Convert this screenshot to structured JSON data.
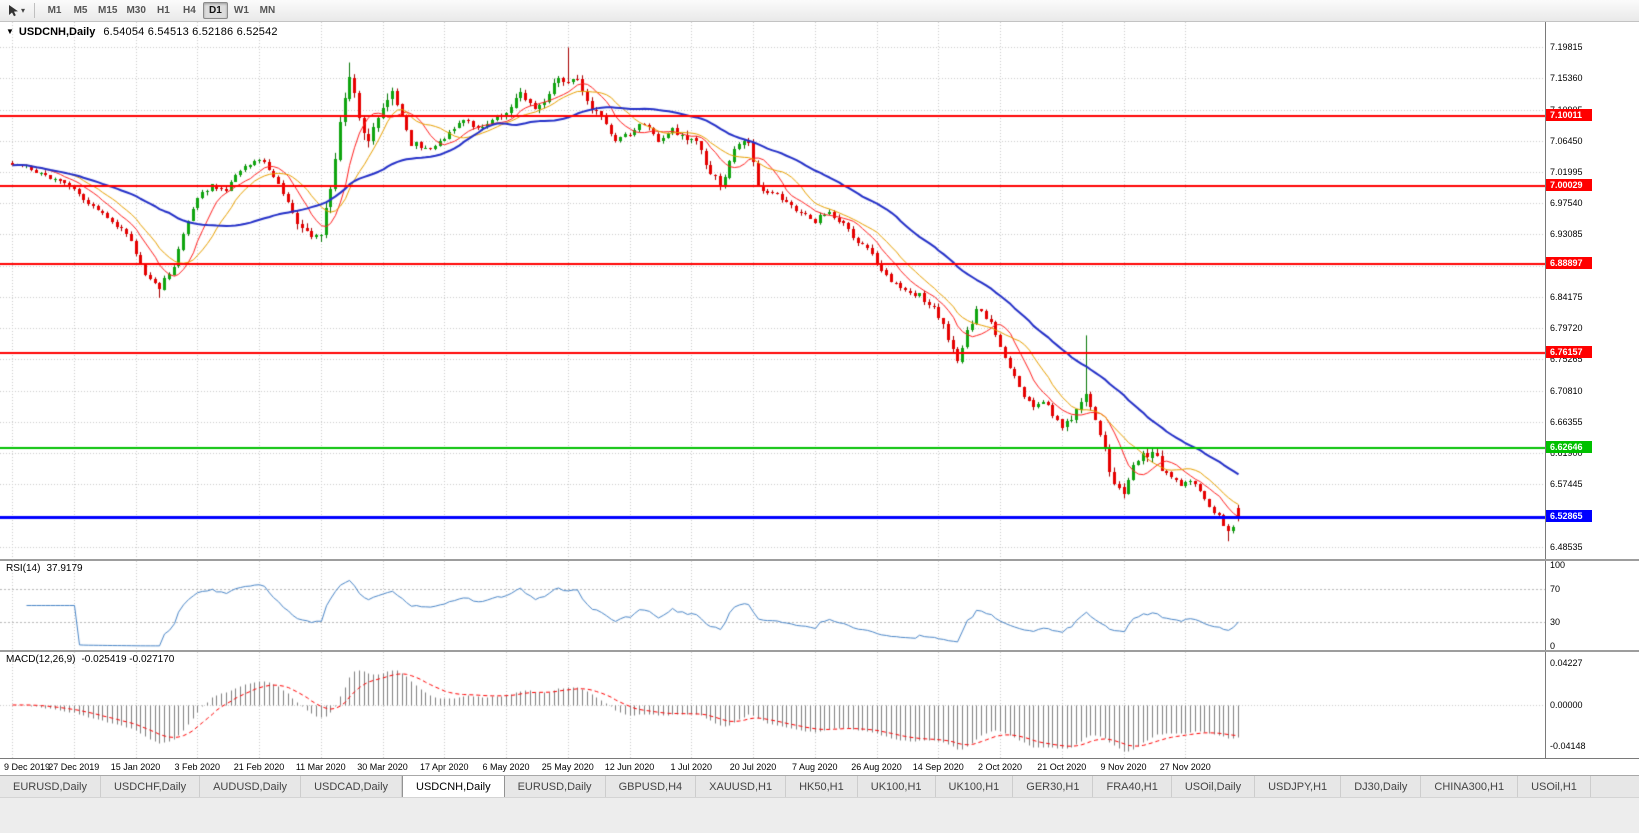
{
  "toolbar": {
    "timeframes": [
      "M1",
      "M5",
      "M15",
      "M30",
      "H1",
      "H4",
      "D1",
      "W1",
      "MN"
    ],
    "active_timeframe": "D1",
    "caret_icon": "▾"
  },
  "chart": {
    "title_icon": "▼",
    "symbol_title": "USDCNH,Daily",
    "ohlc_text": "6.54054 6.54513 6.52186 6.52542"
  },
  "chart_data": {
    "type": "candlestick",
    "title": "USDCNH,Daily",
    "symbol": "USDCNH",
    "timeframe": "Daily",
    "open": 6.54054,
    "high": 6.54513,
    "low": 6.52186,
    "close": 6.52542,
    "bars_total": 259,
    "bars_per_label": 13,
    "x_labels": [
      "9 Dec 2019",
      "27 Dec 2019",
      "15 Jan 2020",
      "3 Feb 2020",
      "21 Feb 2020",
      "11 Mar 2020",
      "30 Mar 2020",
      "17 Apr 2020",
      "6 May 2020",
      "25 May 2020",
      "12 Jun 2020",
      "1 Jul 2020",
      "20 Jul 2020",
      "7 Aug 2020",
      "26 Aug 2020",
      "14 Sep 2020",
      "2 Oct 2020",
      "21 Oct 2020",
      "9 Nov 2020",
      "27 Nov 2020"
    ],
    "y_ticks": [
      "7.19815",
      "7.15360",
      "7.10905",
      "7.06450",
      "7.01995",
      "6.97540",
      "6.93085",
      "6.88630",
      "6.84175",
      "6.79720",
      "6.75265",
      "6.70810",
      "6.66355",
      "6.61900",
      "6.57445",
      "6.52990",
      "6.48535"
    ],
    "price_top": 7.2338,
    "price_bottom": 6.4682,
    "grid_color": "#CBCBCB",
    "up_color": "#0FA50F",
    "up_edge": "#067806",
    "down_color": "#E60000",
    "down_edge": "#A80000",
    "ma": [
      {
        "period": 8,
        "color": "#FF2020",
        "width": 1
      },
      {
        "period": 13,
        "color": "#E8A000",
        "width": 1
      },
      {
        "period": 34,
        "color": "#2430C8",
        "width": 2
      }
    ],
    "horizontal_lines": [
      {
        "price": 7.10011,
        "label": "7.10011",
        "color": "#FF0000",
        "width": 2
      },
      {
        "price": 7.00029,
        "label": "7.00029",
        "color": "#FF0000",
        "width": 2
      },
      {
        "price": 6.88897,
        "label": "6.88897",
        "color": "#FF0000",
        "width": 2
      },
      {
        "price": 6.76157,
        "label": "6.76157",
        "color": "#FF0000",
        "width": 2
      },
      {
        "price": 6.62646,
        "label": "6.62646",
        "color": "#00C100",
        "width": 2
      },
      {
        "price": 6.52865,
        "label": "6.52865",
        "color": "#0000FF",
        "width": 3
      }
    ],
    "price_waypoints": [
      [
        0,
        7.033
      ],
      [
        5,
        7.022
      ],
      [
        9,
        7.01
      ],
      [
        13,
        6.995
      ],
      [
        18,
        6.965
      ],
      [
        22,
        6.945
      ],
      [
        25,
        6.92
      ],
      [
        28,
        6.875
      ],
      [
        31,
        6.855
      ],
      [
        34,
        6.885
      ],
      [
        37,
        6.95
      ],
      [
        39,
        6.985
      ],
      [
        42,
        7.0
      ],
      [
        45,
        6.995
      ],
      [
        48,
        7.02
      ],
      [
        52,
        7.04
      ],
      [
        55,
        7.015
      ],
      [
        59,
        6.96
      ],
      [
        63,
        6.92
      ],
      [
        65,
        6.935
      ],
      [
        67,
        6.99
      ],
      [
        69,
        7.09
      ],
      [
        71,
        7.155
      ],
      [
        73,
        7.1
      ],
      [
        75,
        7.06
      ],
      [
        77,
        7.1
      ],
      [
        80,
        7.135
      ],
      [
        84,
        7.06
      ],
      [
        88,
        7.055
      ],
      [
        91,
        7.07
      ],
      [
        95,
        7.095
      ],
      [
        98,
        7.08
      ],
      [
        101,
        7.095
      ],
      [
        104,
        7.105
      ],
      [
        107,
        7.13
      ],
      [
        110,
        7.11
      ],
      [
        112,
        7.12
      ],
      [
        115,
        7.155
      ],
      [
        117,
        7.145
      ],
      [
        119,
        7.155
      ],
      [
        121,
        7.12
      ],
      [
        124,
        7.095
      ],
      [
        127,
        7.065
      ],
      [
        130,
        7.075
      ],
      [
        133,
        7.09
      ],
      [
        136,
        7.065
      ],
      [
        139,
        7.08
      ],
      [
        142,
        7.07
      ],
      [
        144,
        7.065
      ],
      [
        146,
        7.03
      ],
      [
        149,
        7.0
      ],
      [
        152,
        7.05
      ],
      [
        155,
        7.065
      ],
      [
        157,
        7.0
      ],
      [
        160,
        6.99
      ],
      [
        163,
        6.975
      ],
      [
        166,
        6.96
      ],
      [
        169,
        6.95
      ],
      [
        172,
        6.965
      ],
      [
        175,
        6.945
      ],
      [
        178,
        6.92
      ],
      [
        180,
        6.915
      ],
      [
        182,
        6.89
      ],
      [
        185,
        6.865
      ],
      [
        188,
        6.85
      ],
      [
        191,
        6.845
      ],
      [
        193,
        6.83
      ],
      [
        195,
        6.815
      ],
      [
        197,
        6.78
      ],
      [
        199,
        6.755
      ],
      [
        201,
        6.79
      ],
      [
        203,
        6.825
      ],
      [
        205,
        6.815
      ],
      [
        207,
        6.79
      ],
      [
        209,
        6.755
      ],
      [
        211,
        6.73
      ],
      [
        213,
        6.7
      ],
      [
        215,
        6.685
      ],
      [
        217,
        6.695
      ],
      [
        219,
        6.675
      ],
      [
        221,
        6.655
      ],
      [
        223,
        6.67
      ],
      [
        225,
        6.695
      ],
      [
        226,
        6.7
      ],
      [
        228,
        6.665
      ],
      [
        230,
        6.62
      ],
      [
        232,
        6.575
      ],
      [
        234,
        6.565
      ],
      [
        236,
        6.6
      ],
      [
        238,
        6.615
      ],
      [
        240,
        6.62
      ],
      [
        242,
        6.6
      ],
      [
        244,
        6.585
      ],
      [
        246,
        6.575
      ],
      [
        248,
        6.58
      ],
      [
        250,
        6.565
      ],
      [
        252,
        6.545
      ],
      [
        254,
        6.53
      ],
      [
        256,
        6.505
      ],
      [
        258,
        6.5254
      ]
    ],
    "spikes": {
      "31": {
        "l": 6.8405
      },
      "71": {
        "h": 7.176
      },
      "117": {
        "h": 7.1975
      },
      "226": {
        "h": 6.787
      },
      "256": {
        "l": 6.4935
      }
    },
    "indicators": {
      "rsi": {
        "label": "RSI(14)",
        "value_text": "37.9179",
        "period": 14,
        "color": "#4A86C8",
        "levels": [
          70,
          30
        ],
        "axis_labels": [
          {
            "label": "100",
            "value": 100
          },
          {
            "label": "70",
            "value": 70
          },
          {
            "label": "30",
            "value": 30
          },
          {
            "label": "0",
            "value": 0
          }
        ]
      },
      "macd": {
        "label": "MACD(12,26,9)",
        "values_text": "-0.025419 -0.027170",
        "fast": 12,
        "slow": 26,
        "signal": 9,
        "range": 0.0495,
        "hist_color": "#808080",
        "signal_color": "#FF0000",
        "axis_labels": [
          {
            "label": "0.04227",
            "value": 0.04227
          },
          {
            "label": "0.00000",
            "value": 0
          },
          {
            "label": "-0.04148",
            "value": -0.04148
          }
        ]
      }
    }
  },
  "tabs": {
    "items": [
      "EURUSD,Daily",
      "USDCHF,Daily",
      "AUDUSD,Daily",
      "USDCAD,Daily",
      "USDCNH,Daily",
      "EURUSD,Daily",
      "GBPUSD,H4",
      "XAUUSD,H1",
      "HK50,H1",
      "UK100,H1",
      "UK100,H1",
      "GER30,H1",
      "FRA40,H1",
      "USOil,Daily",
      "USDJPY,H1",
      "DJ30,Daily",
      "CHINA300,H1",
      "USOil,H1"
    ],
    "active_index": 4
  }
}
